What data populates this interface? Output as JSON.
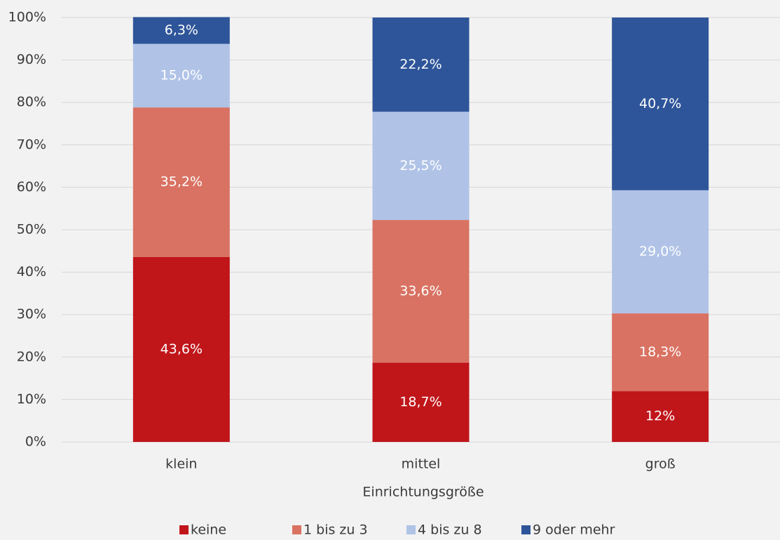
{
  "chart_data": {
    "type": "stacked_bar",
    "x_label": "Einrichtungsgröße",
    "categories": [
      "klein",
      "mittel",
      "groß"
    ],
    "series": [
      {
        "name": "keine",
        "color": "#c0161a",
        "values": [
          43.6,
          18.7,
          12
        ],
        "value_labels": [
          "43,6%",
          "18,7%",
          "12%"
        ]
      },
      {
        "name": "1 bis zu 3",
        "color": "#d97262",
        "values": [
          35.2,
          33.6,
          18.3
        ],
        "value_labels": [
          "35,2%",
          "33,6%",
          "18,3%"
        ]
      },
      {
        "name": "4 bis zu 8",
        "color": "#b0c3e7",
        "values": [
          15.0,
          25.5,
          29.0
        ],
        "value_labels": [
          "15,0%",
          "25,5%",
          "29,0%"
        ]
      },
      {
        "name": "9 oder mehr",
        "color": "#2e5599",
        "values": [
          6.3,
          22.2,
          40.7
        ],
        "value_labels": [
          "6,3%",
          "22,2%",
          "40,7%"
        ]
      }
    ],
    "ylim": [
      0,
      100
    ],
    "yticks": [
      {
        "value": 0,
        "label": "0%"
      },
      {
        "value": 10,
        "label": "10%"
      },
      {
        "value": 20,
        "label": "20%"
      },
      {
        "value": 30,
        "label": "30%"
      },
      {
        "value": 40,
        "label": "40%"
      },
      {
        "value": 50,
        "label": "50%"
      },
      {
        "value": 60,
        "label": "60%"
      },
      {
        "value": 70,
        "label": "70%"
      },
      {
        "value": 80,
        "label": "80%"
      },
      {
        "value": 90,
        "label": "90%"
      },
      {
        "value": 100,
        "label": "100%"
      }
    ],
    "grid": true,
    "legend": "bottom"
  }
}
